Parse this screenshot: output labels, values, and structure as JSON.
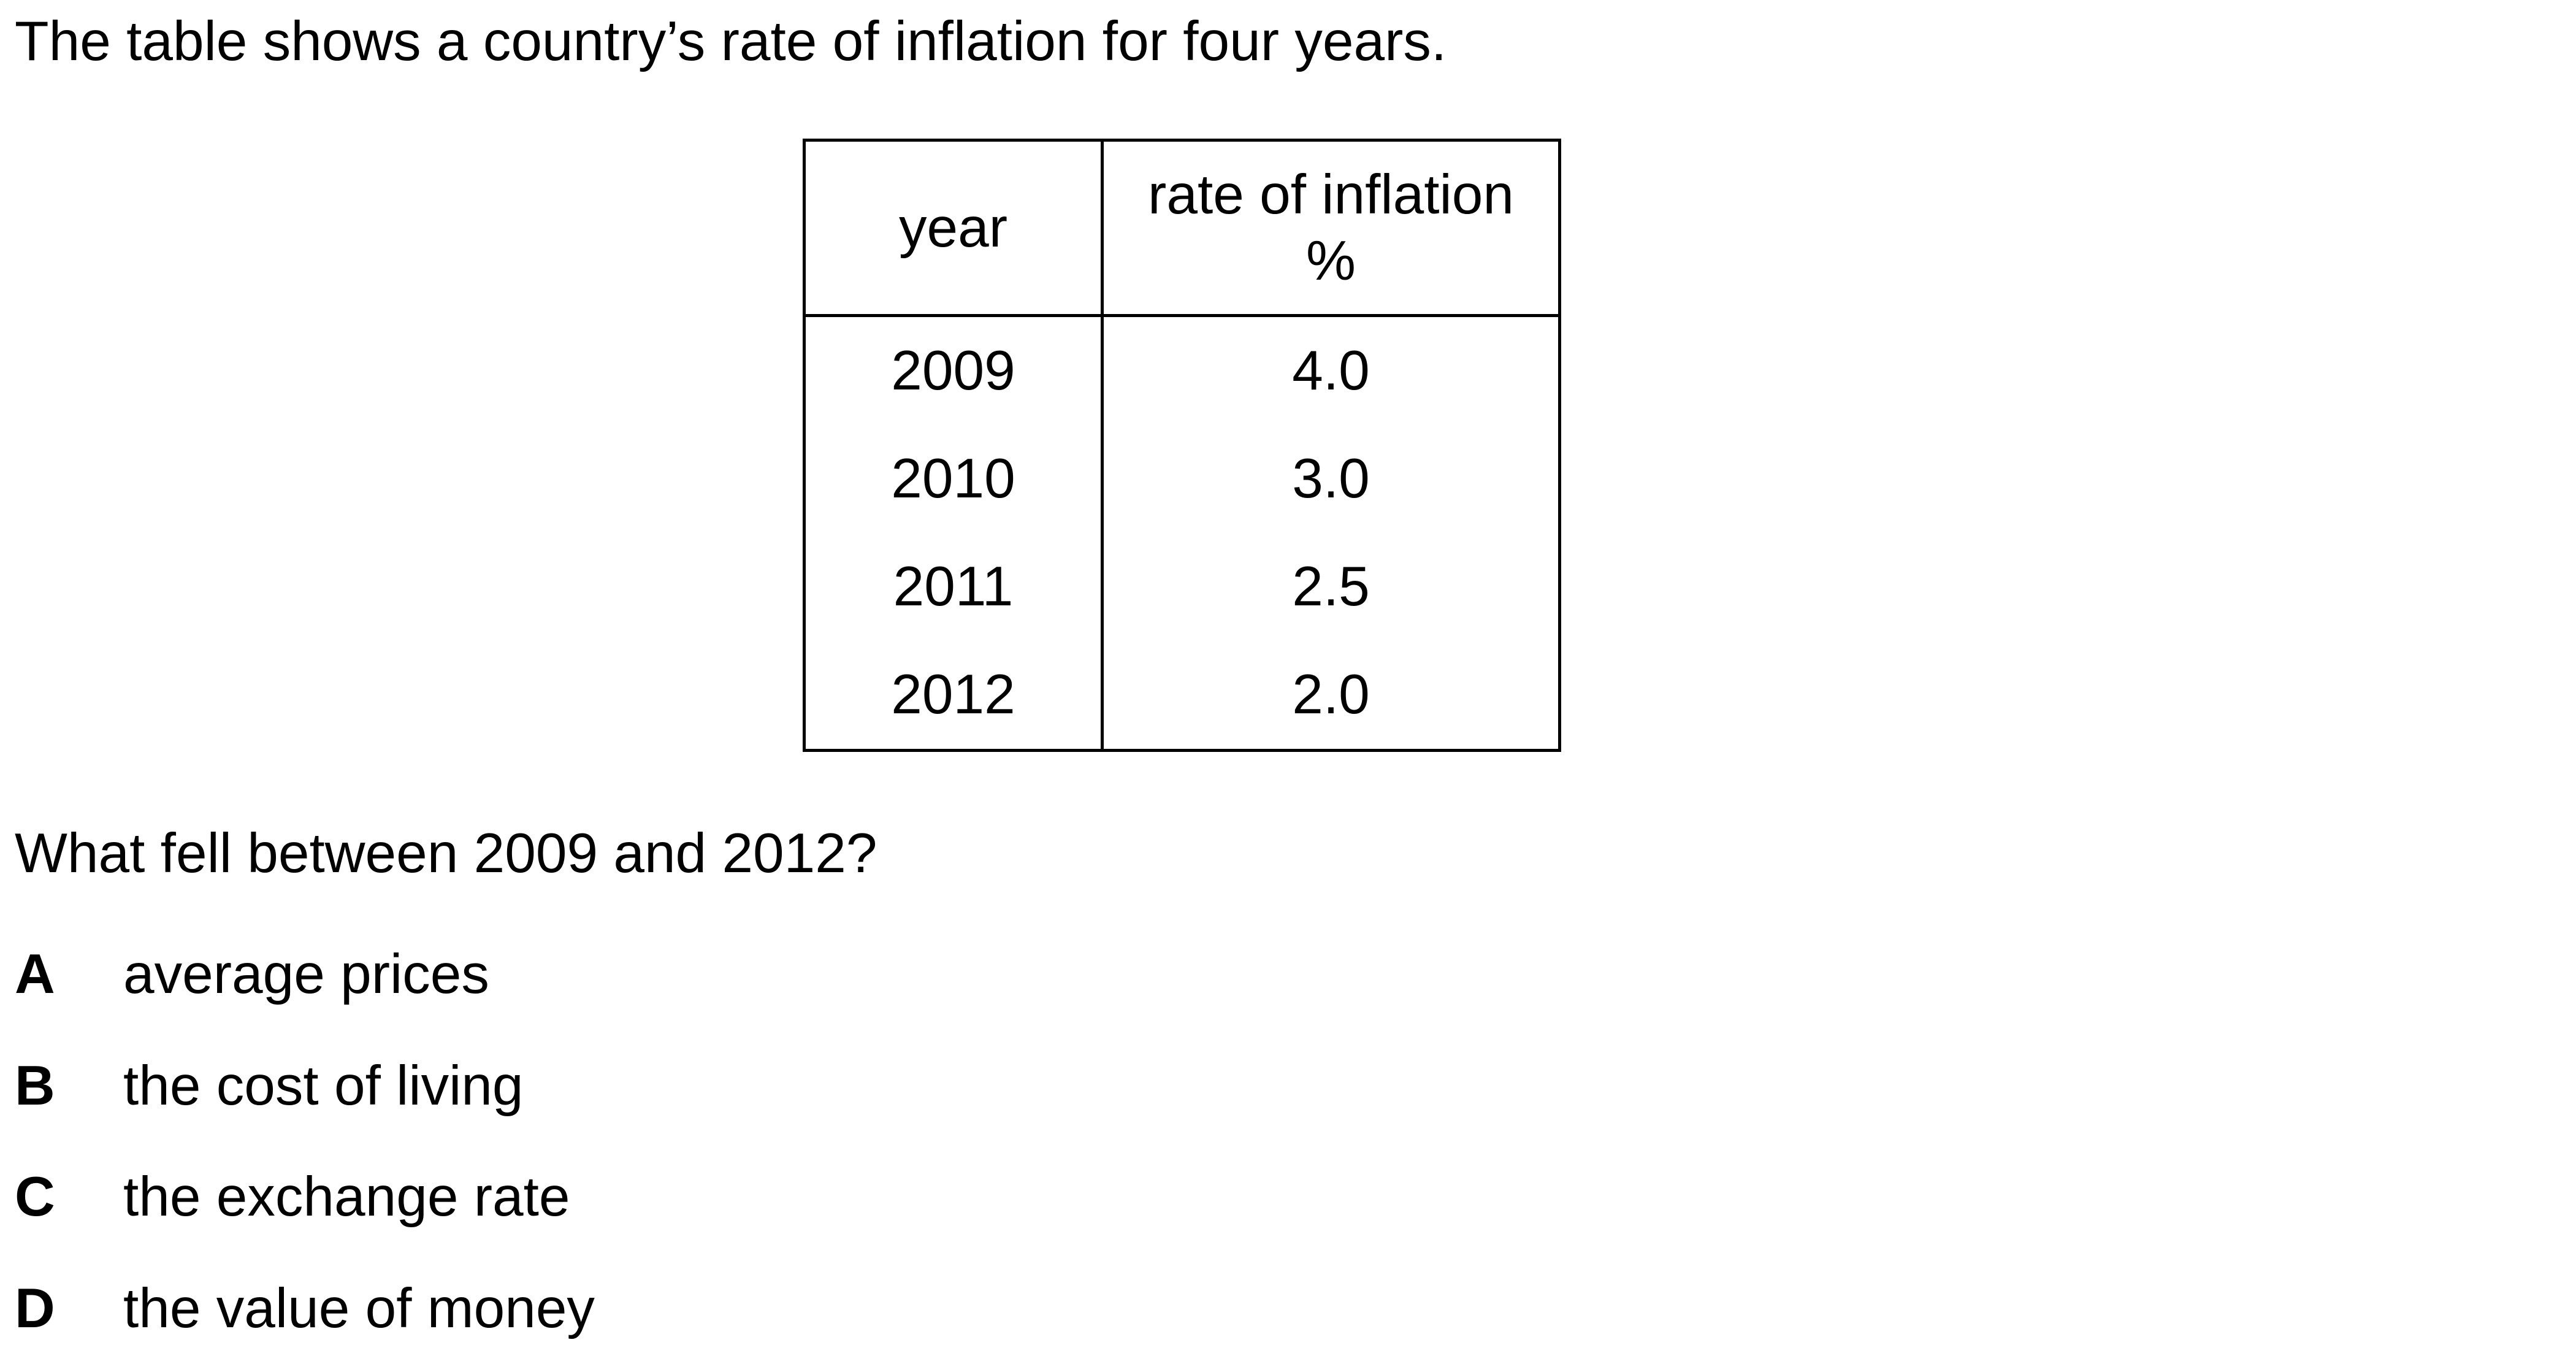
{
  "intro": "The table shows a country’s rate of inflation for four years.",
  "table": {
    "headers": {
      "year": "year",
      "rate_line1": "rate of inflation",
      "rate_line2": "%"
    },
    "rows": [
      {
        "year": "2009",
        "rate": "4.0"
      },
      {
        "year": "2010",
        "rate": "3.0"
      },
      {
        "year": "2011",
        "rate": "2.5"
      },
      {
        "year": "2012",
        "rate": "2.0"
      }
    ]
  },
  "question": "What fell between 2009 and 2012?",
  "options": [
    {
      "letter": "A",
      "text": "average prices"
    },
    {
      "letter": "B",
      "text": "the cost of living"
    },
    {
      "letter": "C",
      "text": "the exchange rate"
    },
    {
      "letter": "D",
      "text": "the value of money"
    }
  ]
}
